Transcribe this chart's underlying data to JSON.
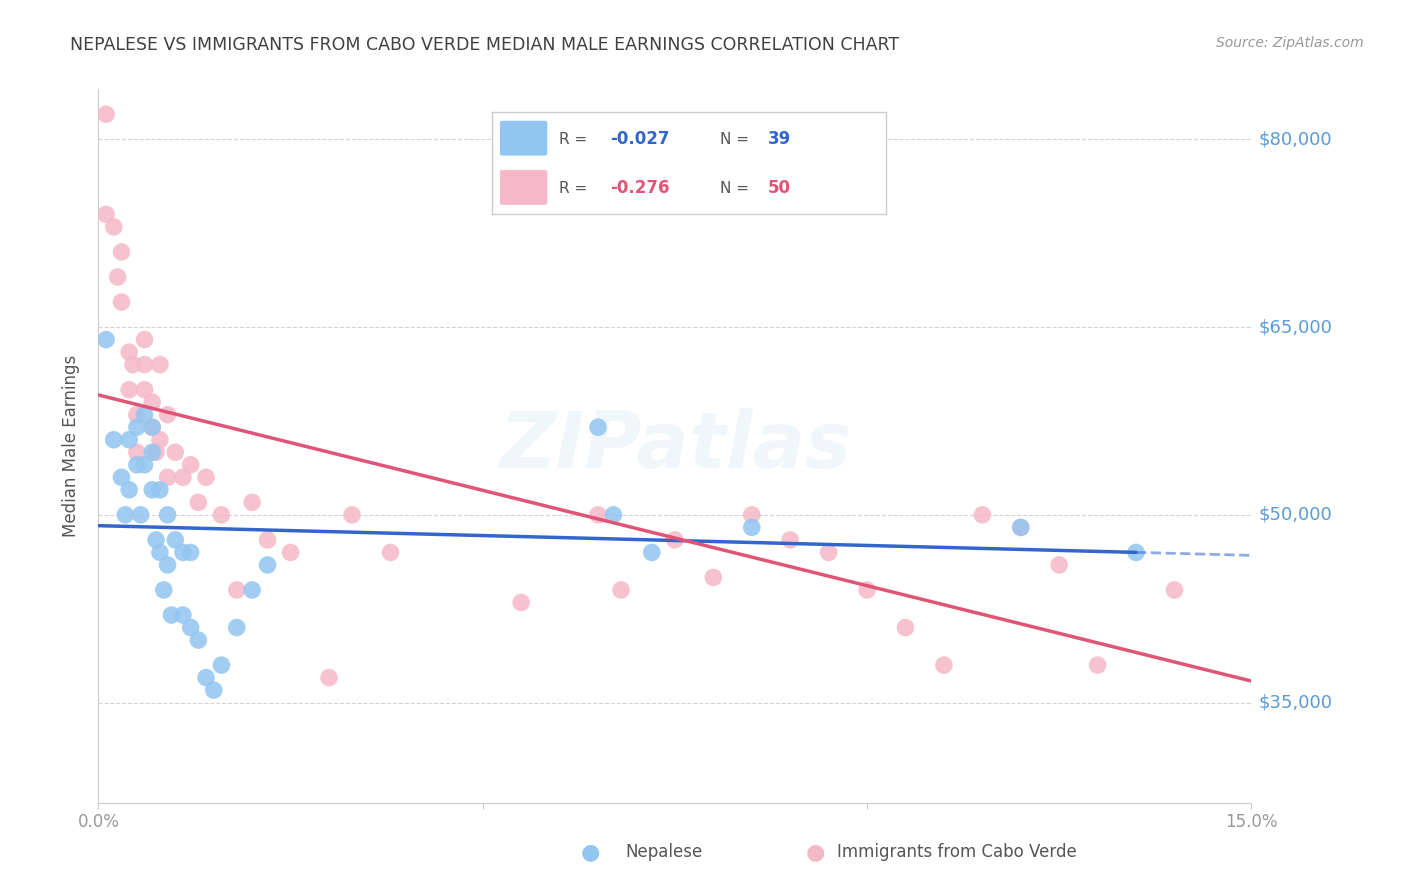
{
  "title": "NEPALESE VS IMMIGRANTS FROM CABO VERDE MEDIAN MALE EARNINGS CORRELATION CHART",
  "source": "Source: ZipAtlas.com",
  "ylabel": "Median Male Earnings",
  "ytick_labels": [
    "$35,000",
    "$50,000",
    "$65,000",
    "$80,000"
  ],
  "ytick_values": [
    35000,
    50000,
    65000,
    80000
  ],
  "ymin": 27000,
  "ymax": 84000,
  "xmin": 0.0,
  "xmax": 0.15,
  "legend_blue_r": "-0.027",
  "legend_blue_n": "39",
  "legend_pink_r": "-0.276",
  "legend_pink_n": "50",
  "blue_label": "Nepalese",
  "pink_label": "Immigrants from Cabo Verde",
  "bg_color": "#ffffff",
  "blue_color": "#92c5f0",
  "pink_color": "#f5b8c8",
  "trendline_blue_color": "#3366cc",
  "trendline_pink_color": "#e05575",
  "grid_color": "#d0d0d0",
  "right_label_color": "#5b9bd5",
  "title_color": "#404040",
  "source_color": "#999999",
  "blue_x": [
    0.001,
    0.002,
    0.003,
    0.0035,
    0.004,
    0.004,
    0.005,
    0.005,
    0.0055,
    0.006,
    0.006,
    0.007,
    0.007,
    0.007,
    0.0075,
    0.008,
    0.008,
    0.0085,
    0.009,
    0.009,
    0.0095,
    0.01,
    0.011,
    0.011,
    0.012,
    0.012,
    0.013,
    0.014,
    0.015,
    0.016,
    0.018,
    0.02,
    0.022,
    0.065,
    0.067,
    0.072,
    0.085,
    0.12,
    0.135
  ],
  "blue_y": [
    64000,
    56000,
    53000,
    50000,
    56000,
    52000,
    57000,
    54000,
    50000,
    58000,
    54000,
    57000,
    55000,
    52000,
    48000,
    52000,
    47000,
    44000,
    50000,
    46000,
    42000,
    48000,
    47000,
    42000,
    47000,
    41000,
    40000,
    37000,
    36000,
    38000,
    41000,
    44000,
    46000,
    57000,
    50000,
    47000,
    49000,
    49000,
    47000
  ],
  "pink_x": [
    0.001,
    0.001,
    0.002,
    0.0025,
    0.003,
    0.003,
    0.004,
    0.004,
    0.0045,
    0.005,
    0.005,
    0.006,
    0.006,
    0.006,
    0.007,
    0.007,
    0.0075,
    0.008,
    0.008,
    0.009,
    0.009,
    0.01,
    0.011,
    0.012,
    0.013,
    0.014,
    0.016,
    0.018,
    0.02,
    0.022,
    0.025,
    0.03,
    0.033,
    0.038,
    0.055,
    0.065,
    0.068,
    0.075,
    0.08,
    0.085,
    0.09,
    0.095,
    0.1,
    0.105,
    0.11,
    0.115,
    0.12,
    0.125,
    0.13,
    0.14
  ],
  "pink_y": [
    82000,
    74000,
    73000,
    69000,
    71000,
    67000,
    63000,
    60000,
    62000,
    58000,
    55000,
    64000,
    62000,
    60000,
    59000,
    57000,
    55000,
    62000,
    56000,
    58000,
    53000,
    55000,
    53000,
    54000,
    51000,
    53000,
    50000,
    44000,
    51000,
    48000,
    47000,
    37000,
    50000,
    47000,
    43000,
    50000,
    44000,
    48000,
    45000,
    50000,
    48000,
    47000,
    44000,
    41000,
    38000,
    50000,
    49000,
    46000,
    38000,
    44000
  ]
}
